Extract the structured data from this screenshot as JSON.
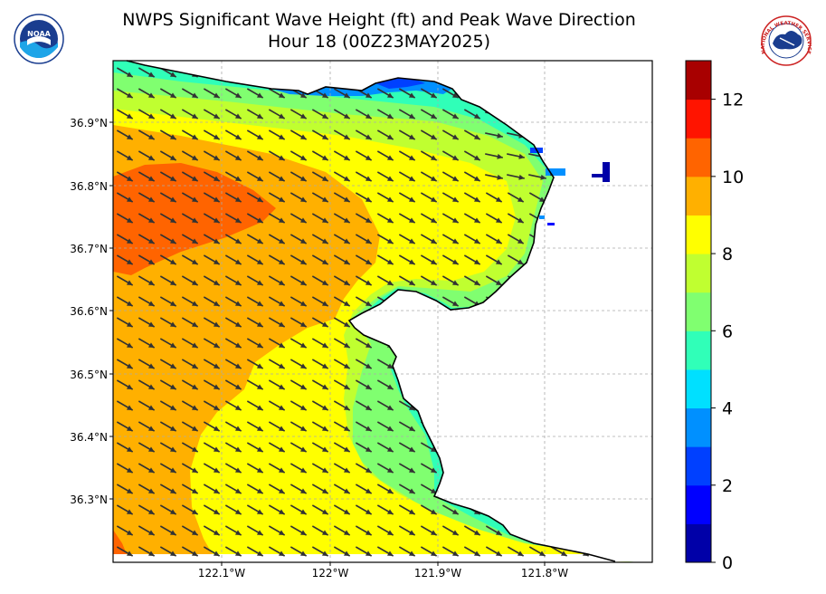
{
  "title": "NWPS Significant Wave Height (ft) and Peak Wave Direction",
  "subtitle": "Hour 18 (00Z23MAY2025)",
  "logos": {
    "left": {
      "name": "NOAA",
      "text": "NOAA"
    },
    "right": {
      "name": "National Weather Service",
      "text": "NATIONAL WEATHER SERVICE"
    }
  },
  "axes": {
    "lat_ticks": [
      "36.9°N",
      "36.8°N",
      "36.7°N",
      "36.6°N",
      "36.5°N",
      "36.4°N",
      "36.3°N"
    ],
    "lon_ticks": [
      "122.1°W",
      "122°W",
      "121.9°W",
      "121.8°W"
    ],
    "lat_range": [
      36.2,
      37.0
    ],
    "lon_range": [
      -122.2,
      -121.7
    ],
    "gridlines": "dashed"
  },
  "colorbar": {
    "min": 0,
    "max": 13,
    "step": 1,
    "tick_labels": [
      "0",
      "2",
      "4",
      "6",
      "8",
      "10",
      "12"
    ],
    "colors": [
      "#0000a8",
      "#0000ff",
      "#0040ff",
      "#0090ff",
      "#00e0ff",
      "#30ffb8",
      "#80ff70",
      "#c0ff30",
      "#ffff00",
      "#ffb000",
      "#ff6400",
      "#ff1400",
      "#a80000"
    ]
  },
  "colors": {
    "land": "#ffffff",
    "coastline": "#000000",
    "arrows": "#333333"
  },
  "wave_direction": "from northwest toward southeast"
}
